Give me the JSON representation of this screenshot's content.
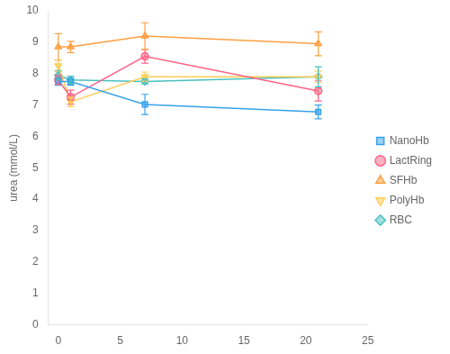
{
  "chart_data": {
    "type": "line",
    "x": [
      0,
      1,
      7,
      21
    ],
    "series": [
      {
        "name": "NanoHb",
        "values": [
          7.75,
          7.75,
          7.02,
          6.78
        ],
        "yerr": [
          0.12,
          0.12,
          0.32,
          0.22
        ],
        "marker": "square"
      },
      {
        "name": "LactRing",
        "values": [
          7.8,
          7.25,
          8.55,
          7.45
        ],
        "yerr": [
          0.15,
          0.22,
          0.22,
          0.32
        ],
        "marker": "circle"
      },
      {
        "name": "SFHb",
        "values": [
          8.85,
          8.85,
          9.2,
          8.95
        ],
        "yerr": [
          0.42,
          0.18,
          0.42,
          0.38
        ],
        "marker": "triangle_up"
      },
      {
        "name": "PolyHb",
        "values": [
          8.25,
          7.1,
          7.9,
          7.9
        ],
        "yerr": [
          0.18,
          0.15,
          0.15,
          0.18
        ],
        "marker": "triangle_down"
      },
      {
        "name": "RBC",
        "values": [
          7.95,
          7.8,
          7.75,
          7.9
        ],
        "yerr": [
          0.15,
          0.12,
          0.08,
          0.32
        ],
        "marker": "diamond"
      }
    ],
    "ylabel": "urea (mmol/L)",
    "xlim": [
      -0.8,
      25
    ],
    "ylim": [
      0,
      10
    ],
    "xticks": [
      0,
      5,
      10,
      15,
      20,
      25
    ],
    "yticks": [
      0,
      1,
      2,
      3,
      4,
      5,
      6,
      7,
      8,
      9,
      10
    ],
    "grid": false,
    "legend": "right"
  }
}
